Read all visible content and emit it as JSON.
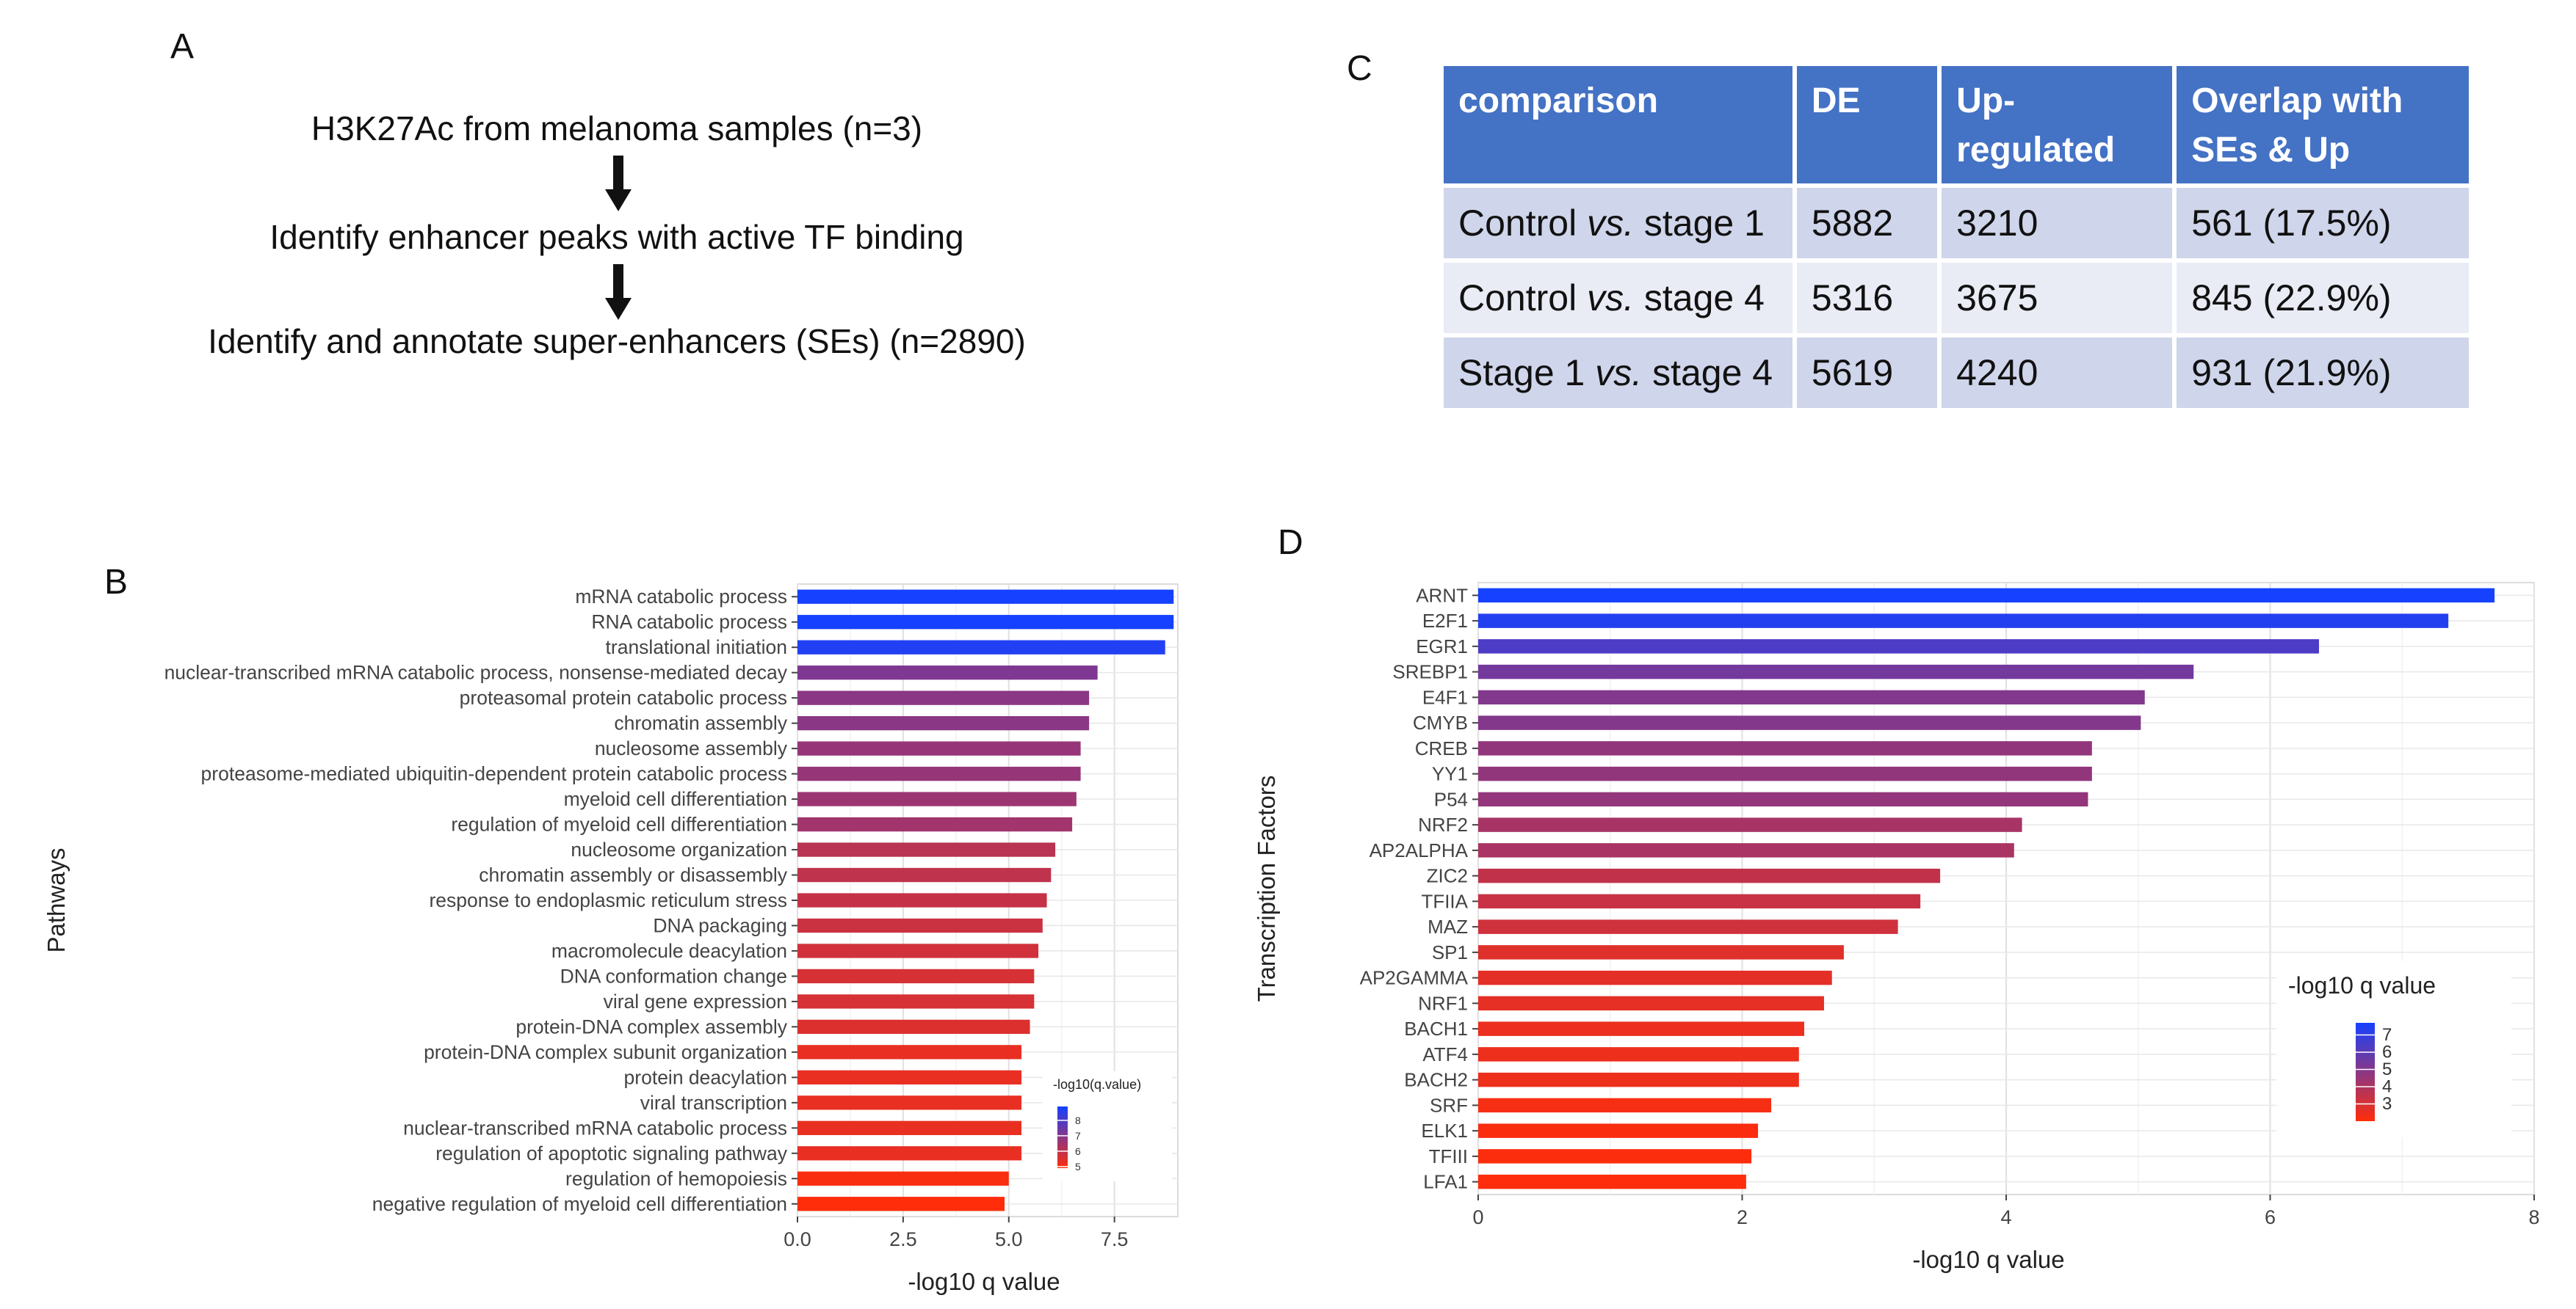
{
  "panel_labels": {
    "a": "A",
    "b": "B",
    "c": "C",
    "d": "D"
  },
  "flow": {
    "step1": "H3K27Ac from melanoma samples (n=3)",
    "step2": "Identify enhancer peaks with active TF binding",
    "step3": "Identify and annotate super-enhancers (SEs) (n=2890)"
  },
  "table": {
    "headers": [
      "comparison",
      "DE",
      "Up-\nregulated",
      "Overlap with\nSEs & Up"
    ],
    "rows": [
      {
        "pre": "Control ",
        "vs": "vs.",
        "post": " stage 1",
        "de": "5882",
        "up": "3210",
        "overlap": "561 (17.5%)"
      },
      {
        "pre": "Control ",
        "vs": "vs.",
        "post": " stage 4",
        "de": "5316",
        "up": "3675",
        "overlap": "845 (22.9%)"
      },
      {
        "pre": "Stage 1 ",
        "vs": "vs.",
        "post": " stage 4",
        "de": "5619",
        "up": "4240",
        "overlap": "931 (21.9%)"
      }
    ]
  },
  "colors": {
    "low": "#ff2d0a",
    "high": "#1541ff",
    "grid": "#ebebeb",
    "header": "#4472c4"
  },
  "chart_data": [
    {
      "id": "B",
      "type": "bar",
      "orientation": "horizontal",
      "title": "",
      "xlabel": "-log10 q value",
      "ylabel": "Pathways",
      "xlim": [
        0,
        9
      ],
      "xticks": [
        0,
        2.5,
        5,
        7.5
      ],
      "xtick_labels": [
        "0.0",
        "2.5",
        "5.0",
        "7.5"
      ],
      "legend": {
        "title": "-log10(q.value)",
        "ticks": [
          8,
          7,
          6,
          5
        ],
        "range": [
          4.9,
          8.9
        ],
        "placement": "bottom-right"
      },
      "categories": [
        "mRNA catabolic process",
        "RNA catabolic process",
        "translational initiation",
        "nuclear-transcribed mRNA catabolic process, nonsense-mediated decay",
        "proteasomal protein catabolic process",
        "chromatin assembly",
        "nucleosome assembly",
        "proteasome-mediated ubiquitin-dependent protein catabolic process",
        "myeloid cell differentiation",
        "regulation of myeloid cell differentiation",
        "nucleosome organization",
        "chromatin assembly or disassembly",
        "response to endoplasmic reticulum stress",
        "DNA packaging",
        "macromolecule deacylation",
        "DNA conformation change",
        "viral gene expression",
        "protein-DNA complex assembly",
        "protein-DNA complex subunit organization",
        "protein deacylation",
        "viral transcription",
        "nuclear-transcribed mRNA catabolic process",
        "regulation of apoptotic signaling pathway",
        "regulation of hemopoiesis",
        "negative regulation of myeloid cell differentiation"
      ],
      "values": [
        8.9,
        8.9,
        8.7,
        7.1,
        6.9,
        6.9,
        6.7,
        6.7,
        6.6,
        6.5,
        6.1,
        6.0,
        5.9,
        5.8,
        5.7,
        5.6,
        5.6,
        5.5,
        5.3,
        5.3,
        5.3,
        5.3,
        5.3,
        5.0,
        4.9
      ]
    },
    {
      "id": "D",
      "type": "bar",
      "orientation": "horizontal",
      "title": "",
      "xlabel": "-log10 q value",
      "ylabel": "Transcription Factors",
      "xlim": [
        0,
        8
      ],
      "xticks": [
        0,
        2,
        4,
        6,
        8
      ],
      "xtick_labels": [
        "0",
        "2",
        "4",
        "6",
        "8"
      ],
      "legend": {
        "title": "-log10 q value",
        "ticks": [
          7,
          6,
          5,
          4,
          3
        ],
        "range": [
          2.0,
          7.7
        ],
        "placement": "bottom-right"
      },
      "categories": [
        "ARNT",
        "E2F1",
        "EGR1",
        "SREBP1",
        "E4F1",
        "CMYB",
        "CREB",
        "YY1",
        "P54",
        "NRF2",
        "AP2ALPHA",
        "ZIC2",
        "TFIIA",
        "MAZ",
        "SP1",
        "AP2GAMMA",
        "NRF1",
        "BACH1",
        "ATF4",
        "BACH2",
        "SRF",
        "ELK1",
        "TFIII",
        "LFA1"
      ],
      "values": [
        7.7,
        7.35,
        6.37,
        5.42,
        5.05,
        5.02,
        4.65,
        4.65,
        4.62,
        4.12,
        4.06,
        3.5,
        3.35,
        3.18,
        2.77,
        2.68,
        2.62,
        2.47,
        2.43,
        2.43,
        2.22,
        2.12,
        2.07,
        2.03
      ]
    }
  ]
}
